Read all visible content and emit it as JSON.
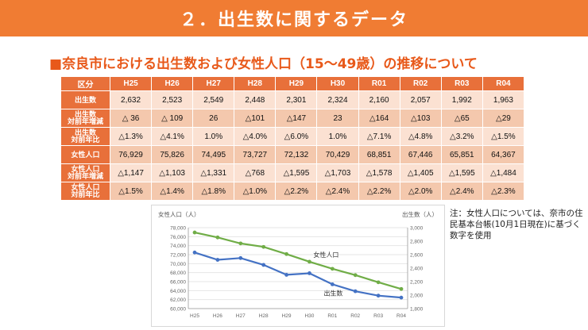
{
  "banner": {
    "title": "２．出生数に関するデータ"
  },
  "subtitle": {
    "marker": "■",
    "text": "奈良市における出生数および女性人口（15～49歳）の推移について"
  },
  "table": {
    "corner": "区分",
    "years": [
      "H25",
      "H26",
      "H27",
      "H28",
      "H29",
      "H30",
      "R01",
      "R02",
      "R03",
      "R04"
    ],
    "rows": [
      {
        "label": "出生数",
        "values": [
          "2,632",
          "2,523",
          "2,549",
          "2,448",
          "2,301",
          "2,324",
          "2,160",
          "2,057",
          "1,992",
          "1,963"
        ]
      },
      {
        "label": "出生数\n対前年増減",
        "values": [
          "△ 36",
          "△ 109",
          "26",
          "△101",
          "△147",
          "23",
          "△164",
          "△103",
          "△65",
          "△29"
        ]
      },
      {
        "label": "出生数\n対前年比",
        "values": [
          "△1.3%",
          "△4.1%",
          "1.0%",
          "△4.0%",
          "△6.0%",
          "1.0%",
          "△7.1%",
          "△4.8%",
          "△3.2%",
          "△1.5%"
        ]
      },
      {
        "label": "女性人口",
        "values": [
          "76,929",
          "75,826",
          "74,495",
          "73,727",
          "72,132",
          "70,429",
          "68,851",
          "67,446",
          "65,851",
          "64,367"
        ]
      },
      {
        "label": "女性人口\n対前年増減",
        "values": [
          "△1,147",
          "△1,103",
          "△1,331",
          "△768",
          "△1,595",
          "△1,703",
          "△1,578",
          "△1,405",
          "△1,595",
          "△1,484"
        ]
      },
      {
        "label": "女性人口\n対前年比",
        "values": [
          "△1.5%",
          "△1.4%",
          "△1.8%",
          "△1.0%",
          "△2.2%",
          "△2.4%",
          "△2.2%",
          "△2.0%",
          "△2.4%",
          "△2.3%"
        ]
      }
    ]
  },
  "note": {
    "text": "注：女性人口については、奈市の住民基本台帳(10月1日現在)に基づく数字を使用"
  },
  "chart_data": {
    "type": "line",
    "categories": [
      "H25",
      "H26",
      "H27",
      "H28",
      "H29",
      "H30",
      "R01",
      "R02",
      "R03",
      "R04"
    ],
    "ylabel_left": "女性人口（人）",
    "ylabel_right": "出生数（人）",
    "ylim_left": [
      60000,
      78000
    ],
    "ylim_right": [
      1800,
      3000
    ],
    "yticks_left": [
      "60,000",
      "62,000",
      "64,000",
      "66,000",
      "68,000",
      "70,000",
      "72,000",
      "74,000",
      "76,000",
      "78,000"
    ],
    "yticks_right": [
      "1,800",
      "2,000",
      "2,200",
      "2,400",
      "2,600",
      "2,800",
      "3,000"
    ],
    "series": [
      {
        "name": "女性人口",
        "axis": "left",
        "color": "#70ad47",
        "values": [
          76929,
          75826,
          74495,
          73727,
          72132,
          70429,
          68851,
          67446,
          65851,
          64367
        ]
      },
      {
        "name": "出生数",
        "axis": "right",
        "color": "#4472c4",
        "values": [
          2632,
          2523,
          2549,
          2448,
          2301,
          2324,
          2160,
          2057,
          1992,
          1963
        ]
      }
    ]
  }
}
